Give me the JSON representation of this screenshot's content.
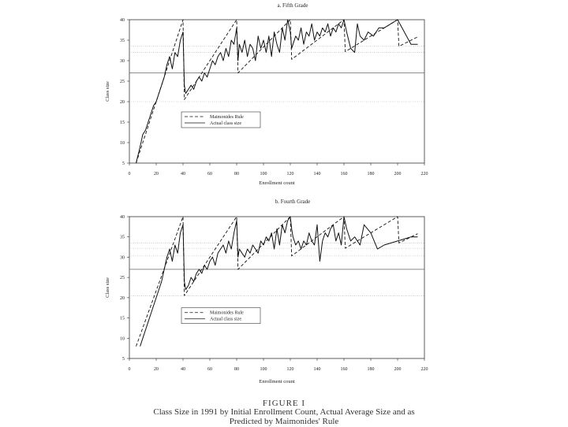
{
  "caption": {
    "figure_label": "FIGURE I",
    "line1": "Class Size in 1991 by Initial Enrollment Count, Actual Average Size and as",
    "line2": "Predicted by Maimonides' Rule"
  },
  "chart_data": [
    {
      "type": "line",
      "title": "a. Fifth Grade",
      "xlabel": "Enrollment count",
      "ylabel": "Class size",
      "xlim": [
        0,
        220
      ],
      "ylim": [
        5,
        40
      ],
      "xticks": [
        0,
        20,
        40,
        60,
        80,
        100,
        120,
        140,
        160,
        180,
        200,
        220
      ],
      "yticks": [
        5,
        10,
        15,
        20,
        25,
        30,
        35,
        40
      ],
      "hlines": [
        20,
        27,
        32,
        33.5
      ],
      "legend": {
        "position": "lower-left",
        "entries": [
          "Maimonides Rule",
          "Actual class size"
        ]
      },
      "series": [
        {
          "name": "Maimonides Rule",
          "style": "dashed",
          "x": [
            5,
            40,
            41,
            80,
            81,
            120,
            121,
            160,
            161,
            200,
            201,
            215
          ],
          "y": [
            5,
            40,
            20.5,
            40,
            27,
            40,
            30.3,
            40,
            32.2,
            40,
            33.5,
            35.8
          ]
        },
        {
          "name": "Actual class size",
          "style": "solid",
          "x": [
            5,
            8,
            10,
            12,
            14,
            16,
            18,
            20,
            22,
            24,
            26,
            28,
            30,
            32,
            34,
            36,
            38,
            40,
            41,
            42,
            44,
            46,
            48,
            50,
            52,
            54,
            56,
            58,
            60,
            62,
            64,
            66,
            68,
            70,
            72,
            74,
            76,
            78,
            80,
            81,
            82,
            84,
            86,
            88,
            90,
            92,
            94,
            96,
            98,
            100,
            102,
            104,
            106,
            108,
            110,
            112,
            114,
            116,
            118,
            120,
            121,
            122,
            124,
            126,
            128,
            130,
            132,
            134,
            136,
            138,
            140,
            142,
            144,
            146,
            148,
            150,
            152,
            154,
            156,
            158,
            160,
            162,
            165,
            168,
            170,
            172,
            175,
            178,
            182,
            186,
            190,
            195,
            200,
            205,
            210,
            215
          ],
          "y": [
            5,
            9,
            12,
            13,
            15,
            17,
            19,
            20,
            22,
            24,
            26,
            29,
            31,
            28,
            32,
            31,
            35,
            37,
            24,
            22,
            23,
            24,
            23,
            25,
            26,
            25,
            27,
            26,
            28,
            30,
            29,
            31,
            32,
            30,
            33,
            31,
            35,
            34,
            38,
            30,
            34,
            32,
            35,
            31,
            34,
            33,
            30,
            36,
            33,
            35,
            32,
            36,
            31,
            37,
            34,
            32,
            38,
            35,
            40,
            37,
            33,
            34,
            36,
            35,
            38,
            34,
            37,
            36,
            39,
            35,
            37,
            36,
            38,
            37,
            39,
            36,
            38,
            37,
            39,
            38,
            40,
            37,
            33,
            32,
            39,
            36,
            35,
            37,
            36,
            38,
            38,
            39,
            40,
            37,
            34,
            34
          ]
        }
      ]
    },
    {
      "type": "line",
      "title": "b. Fourth Grade",
      "xlabel": "Enrollment count",
      "ylabel": "Class size",
      "xlim": [
        0,
        220
      ],
      "ylim": [
        5,
        40
      ],
      "xticks": [
        0,
        20,
        40,
        60,
        80,
        100,
        120,
        140,
        160,
        180,
        200,
        220
      ],
      "yticks": [
        5,
        10,
        15,
        20,
        25,
        30,
        35,
        40
      ],
      "hlines": [
        20.5,
        27,
        30.3,
        32.2,
        33.5
      ],
      "legend": {
        "position": "lower-left",
        "entries": [
          "Maimonides Rule",
          "Actual class size"
        ]
      },
      "series": [
        {
          "name": "Maimonides Rule",
          "style": "dashed",
          "x": [
            5,
            40,
            41,
            80,
            81,
            120,
            121,
            160,
            161,
            200,
            201,
            215
          ],
          "y": [
            8,
            40,
            20.5,
            40,
            27,
            40,
            30.3,
            40,
            32.2,
            40,
            33.5,
            35.8
          ]
        },
        {
          "name": "Actual class size",
          "style": "solid",
          "x": [
            8,
            10,
            12,
            14,
            16,
            18,
            20,
            22,
            24,
            26,
            28,
            30,
            32,
            34,
            36,
            38,
            40,
            41,
            42,
            44,
            46,
            48,
            50,
            52,
            54,
            56,
            58,
            60,
            62,
            64,
            66,
            68,
            70,
            72,
            74,
            76,
            78,
            80,
            81,
            82,
            84,
            86,
            88,
            90,
            92,
            94,
            96,
            98,
            100,
            102,
            104,
            106,
            108,
            110,
            112,
            114,
            116,
            118,
            120,
            121,
            122,
            124,
            126,
            128,
            130,
            132,
            134,
            136,
            138,
            140,
            142,
            144,
            146,
            148,
            150,
            152,
            154,
            156,
            158,
            160,
            162,
            165,
            168,
            172,
            175,
            180,
            185,
            190,
            200,
            210,
            215
          ],
          "y": [
            8,
            10,
            12,
            14,
            16,
            18,
            20,
            22,
            24,
            27,
            30,
            32,
            29,
            33,
            31,
            36,
            38,
            24,
            22,
            23,
            25,
            24,
            26,
            27,
            26,
            28,
            27,
            29,
            30,
            28,
            31,
            32,
            33,
            31,
            34,
            32,
            36,
            39,
            30,
            32,
            31,
            30,
            32,
            31,
            33,
            32,
            31,
            34,
            33,
            35,
            34,
            36,
            32,
            37,
            33,
            38,
            36,
            39,
            40,
            37,
            35,
            33,
            34,
            32,
            34,
            33,
            36,
            34,
            33,
            38,
            29,
            34,
            36,
            35,
            37,
            38,
            34,
            36,
            33,
            40,
            37,
            34,
            35,
            33,
            38,
            36,
            32,
            33,
            34,
            35,
            35
          ]
        }
      ]
    }
  ]
}
